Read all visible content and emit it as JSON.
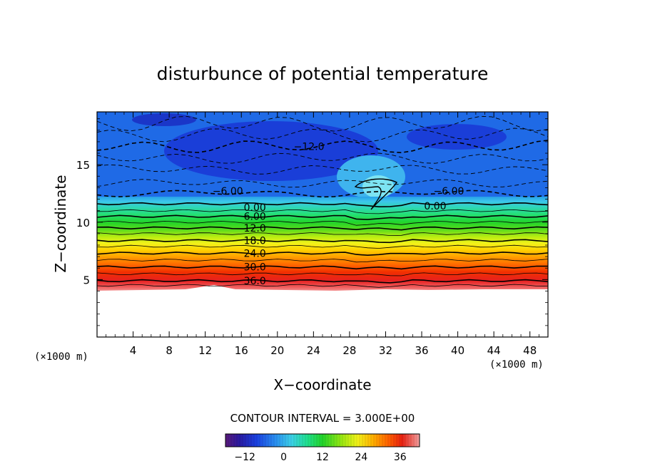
{
  "chart_data": {
    "type": "heatmap",
    "title": "disturbunce of potential temperature",
    "xlabel": "X−coordinate",
    "ylabel": "Z−coordinate",
    "x_unit_left": "(×1000 m)",
    "x_unit_right": "(×1000 m)",
    "xlim": [
      0,
      50
    ],
    "ylim": [
      0,
      19.6
    ],
    "x_ticks": [
      4,
      8,
      12,
      16,
      20,
      24,
      28,
      32,
      36,
      40,
      44,
      48
    ],
    "x_tick_labels": [
      "4",
      "8",
      "12",
      "16",
      "20",
      "24",
      "28",
      "32",
      "36",
      "40",
      "44",
      "48"
    ],
    "y_ticks": [
      5,
      10,
      15
    ],
    "y_tick_labels": [
      "5",
      "10",
      "15"
    ],
    "contour_interval_text": "CONTOUR INTERVAL = 3.000E+00",
    "contour_interval": 3.0,
    "ground_height": 4.2,
    "contour_labels": [
      {
        "text": "−12.0",
        "x": 23.5,
        "z": 16.6
      },
      {
        "text": "−6.00",
        "x": 14.5,
        "z": 12.7
      },
      {
        "text": "−6.00",
        "x": 39.0,
        "z": 12.7
      },
      {
        "text": "0.00",
        "x": 17.5,
        "z": 11.3
      },
      {
        "text": "0.00",
        "x": 37.5,
        "z": 11.4
      },
      {
        "text": "6.00",
        "x": 17.5,
        "z": 10.5
      },
      {
        "text": "12.0",
        "x": 17.5,
        "z": 9.5
      },
      {
        "text": "18.0",
        "x": 17.5,
        "z": 8.4
      },
      {
        "text": "24.0",
        "x": 17.5,
        "z": 7.3
      },
      {
        "text": "30.0",
        "x": 17.5,
        "z": 6.1
      },
      {
        "text": "36.0",
        "x": 17.5,
        "z": 4.9
      }
    ],
    "colorbar": {
      "range": [
        -18,
        42
      ],
      "tick_values": [
        -12,
        0,
        12,
        24,
        36
      ],
      "tick_labels": [
        "−12",
        "0",
        "12",
        "24",
        "36"
      ]
    }
  }
}
